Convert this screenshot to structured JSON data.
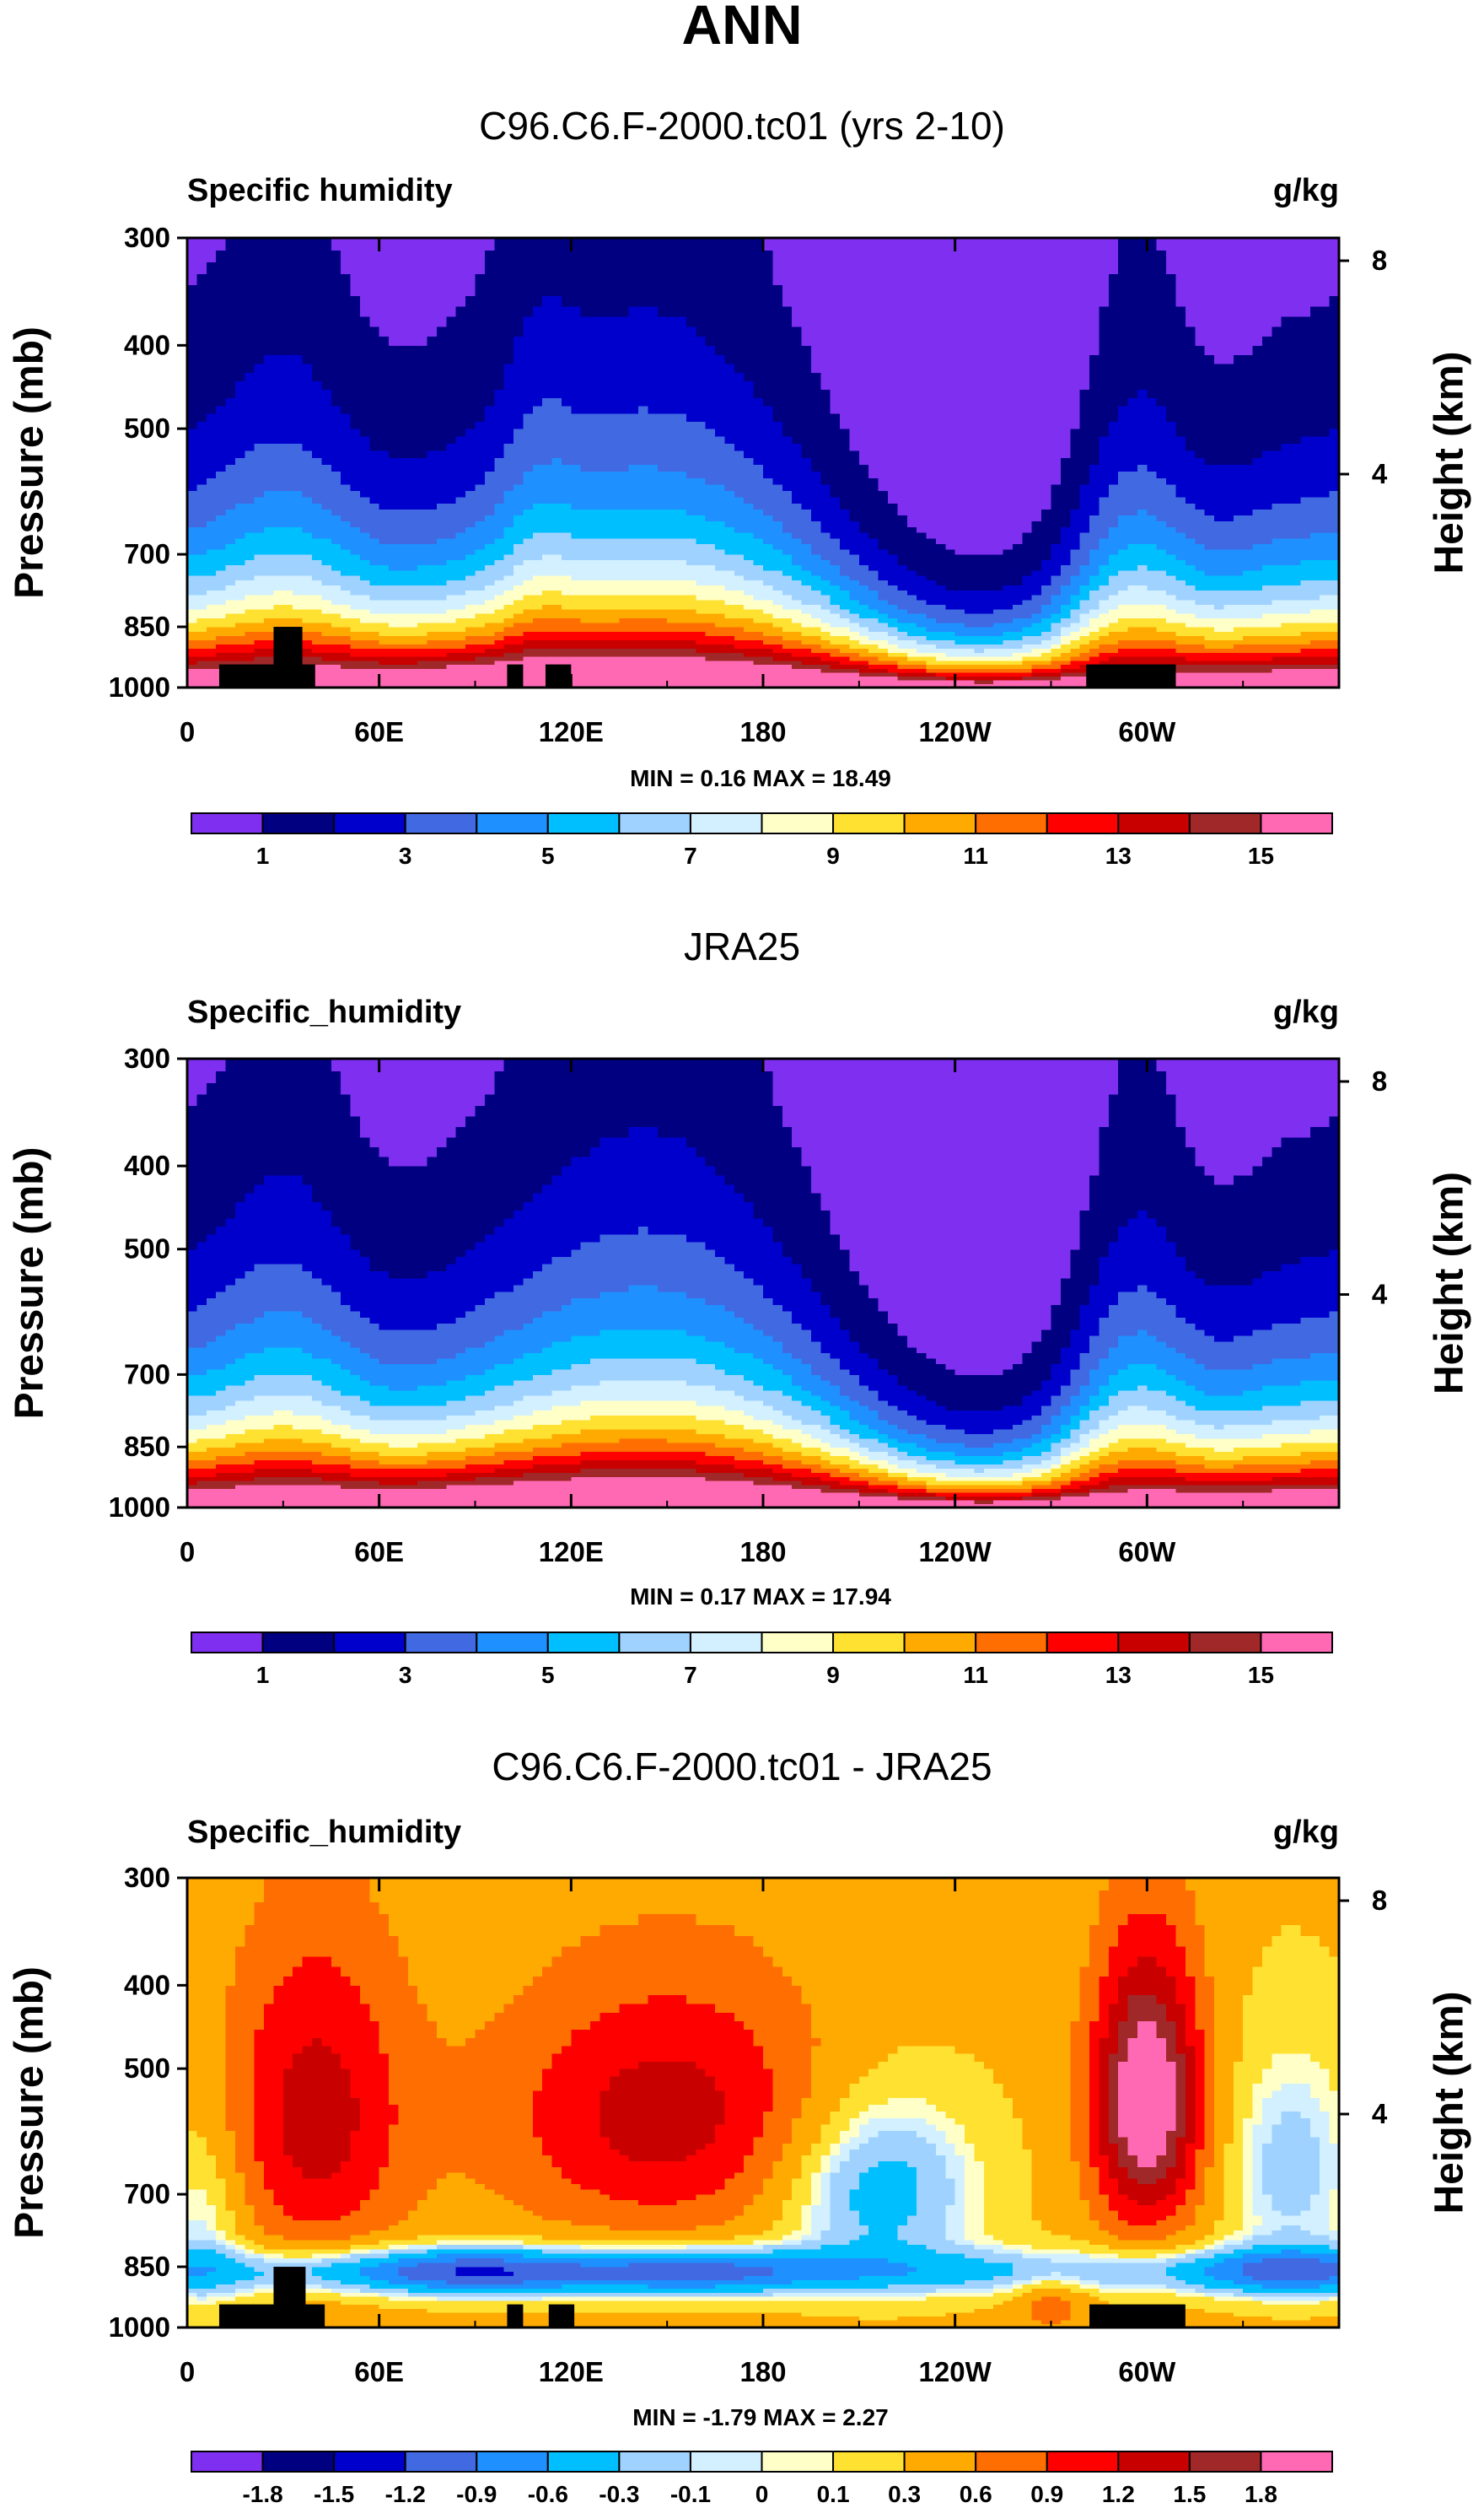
{
  "page_title": "ANN",
  "chart_data": [
    {
      "type": "heatmap",
      "title": "C96.C6.F-2000.tc01 (yrs 2-10)",
      "variable_label": "Specific humidity",
      "units": "g/kg",
      "ylabel": "Pressure (mb)",
      "ylabel_right": "Height (km)",
      "x_ticks": [
        "0",
        "60E",
        "120E",
        "180",
        "120W",
        "60W"
      ],
      "x_tick_lon": [
        0,
        60,
        120,
        180,
        240,
        300
      ],
      "xlim": [
        0,
        360
      ],
      "y_ticks": [
        "300",
        "400",
        "500",
        "700",
        "850",
        "1000"
      ],
      "y_tick_p": [
        300,
        400,
        500,
        700,
        850,
        1000
      ],
      "ylim": [
        1000,
        300
      ],
      "right_ticks": [
        "8",
        "4"
      ],
      "right_tick_km": [
        8,
        4
      ],
      "stats": "MIN =   0.16  MAX =  18.49",
      "min": 0.16,
      "max": 18.49,
      "colorbar_labels": [
        "1",
        "3",
        "5",
        "7",
        "9",
        "11",
        "13",
        "15"
      ],
      "colorbar_levels": [
        1,
        2,
        3,
        4,
        5,
        6,
        7,
        8,
        9,
        10,
        11,
        12,
        13,
        14,
        15
      ],
      "colors": [
        "#7f2ff0",
        "#000080",
        "#0000cd",
        "#4169e1",
        "#1e90ff",
        "#00bfff",
        "#a0d2ff",
        "#d2f0ff",
        "#ffffc8",
        "#ffe132",
        "#ffaa00",
        "#ff6e00",
        "#ff0000",
        "#c80000",
        "#a02828",
        "#ff69b4"
      ],
      "terrain": [
        {
          "lon": [
            10,
            40
          ],
          "p": [
            940,
            1000
          ]
        },
        {
          "lon": [
            27,
            36
          ],
          "p": [
            850,
            1000
          ]
        },
        {
          "lon": [
            100,
            105
          ],
          "p": [
            940,
            1000
          ]
        },
        {
          "lon": [
            112,
            120
          ],
          "p": [
            940,
            1000
          ]
        },
        {
          "lon": [
            281,
            309
          ],
          "p": [
            940,
            1000
          ]
        }
      ]
    },
    {
      "type": "heatmap",
      "title": "JRA25",
      "variable_label": "Specific_humidity",
      "units": "g/kg",
      "ylabel": "Pressure (mb)",
      "ylabel_right": "Height (km)",
      "x_ticks": [
        "0",
        "60E",
        "120E",
        "180",
        "120W",
        "60W"
      ],
      "x_tick_lon": [
        0,
        60,
        120,
        180,
        240,
        300
      ],
      "xlim": [
        0,
        360
      ],
      "y_ticks": [
        "300",
        "400",
        "500",
        "700",
        "850",
        "1000"
      ],
      "y_tick_p": [
        300,
        400,
        500,
        700,
        850,
        1000
      ],
      "ylim": [
        1000,
        300
      ],
      "right_ticks": [
        "8",
        "4"
      ],
      "right_tick_km": [
        8,
        4
      ],
      "stats": "MIN =   0.17  MAX =  17.94",
      "min": 0.17,
      "max": 17.94,
      "colorbar_labels": [
        "1",
        "3",
        "5",
        "7",
        "9",
        "11",
        "13",
        "15"
      ],
      "colorbar_levels": [
        1,
        2,
        3,
        4,
        5,
        6,
        7,
        8,
        9,
        10,
        11,
        12,
        13,
        14,
        15
      ],
      "colors": [
        "#7f2ff0",
        "#000080",
        "#0000cd",
        "#4169e1",
        "#1e90ff",
        "#00bfff",
        "#a0d2ff",
        "#d2f0ff",
        "#ffffc8",
        "#ffe132",
        "#ffaa00",
        "#ff6e00",
        "#ff0000",
        "#c80000",
        "#a02828",
        "#ff69b4"
      ],
      "terrain": []
    },
    {
      "type": "heatmap",
      "title": "C96.C6.F-2000.tc01 - JRA25",
      "variable_label": "Specific_humidity",
      "units": "g/kg",
      "ylabel": "Pressure (mb)",
      "ylabel_right": "Height (km)",
      "x_ticks": [
        "0",
        "60E",
        "120E",
        "180",
        "120W",
        "60W"
      ],
      "x_tick_lon": [
        0,
        60,
        120,
        180,
        240,
        300
      ],
      "xlim": [
        0,
        360
      ],
      "y_ticks": [
        "300",
        "400",
        "500",
        "700",
        "850",
        "1000"
      ],
      "y_tick_p": [
        300,
        400,
        500,
        700,
        850,
        1000
      ],
      "ylim": [
        1000,
        300
      ],
      "right_ticks": [
        "8",
        "4"
      ],
      "right_tick_km": [
        8,
        4
      ],
      "stats": "MIN =  -1.79  MAX =   2.27",
      "min": -1.79,
      "max": 2.27,
      "colorbar_labels": [
        "-1.8",
        "-1.5",
        "-1.2",
        "-0.9",
        "-0.6",
        "-0.3",
        "-0.1",
        "0",
        "0.1",
        "0.3",
        "0.6",
        "0.9",
        "1.2",
        "1.5",
        "1.8"
      ],
      "colorbar_levels": [
        -1.8,
        -1.5,
        -1.2,
        -0.9,
        -0.6,
        -0.3,
        -0.1,
        0,
        0.1,
        0.3,
        0.6,
        0.9,
        1.2,
        1.5,
        1.8
      ],
      "colors": [
        "#7f2ff0",
        "#000080",
        "#0000cd",
        "#4169e1",
        "#1e90ff",
        "#00bfff",
        "#a0d2ff",
        "#d2f0ff",
        "#ffffc8",
        "#ffe132",
        "#ffaa00",
        "#ff6e00",
        "#ff0000",
        "#c80000",
        "#a02828",
        "#ff69b4"
      ],
      "terrain": [
        {
          "lon": [
            10,
            43
          ],
          "p": [
            940,
            1000
          ]
        },
        {
          "lon": [
            27,
            37
          ],
          "p": [
            850,
            1000
          ]
        },
        {
          "lon": [
            100,
            105
          ],
          "p": [
            940,
            1000
          ]
        },
        {
          "lon": [
            113,
            121
          ],
          "p": [
            940,
            1000
          ]
        },
        {
          "lon": [
            282,
            312
          ],
          "p": [
            940,
            1000
          ]
        }
      ]
    }
  ]
}
